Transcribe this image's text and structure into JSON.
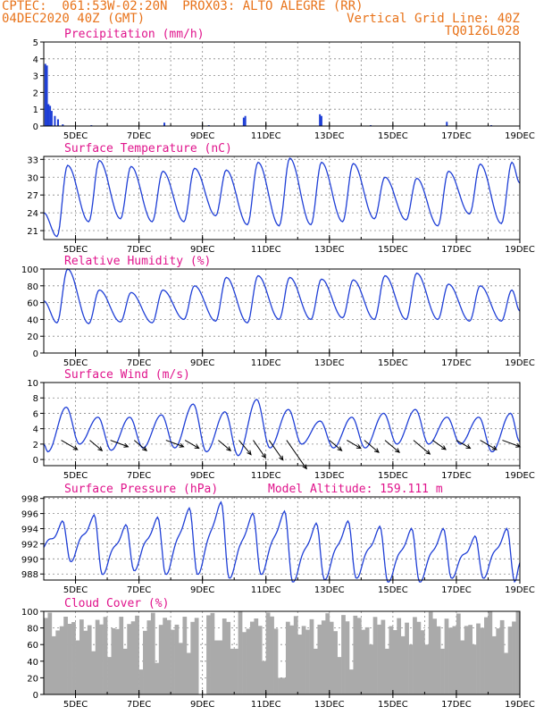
{
  "header": {
    "line1_left": "CPTEC:  061:53W-02:20N  PROX03: ALTO ALEGRE (RR)",
    "line2_left": "04DEC2020 40Z (GMT)",
    "line2_right": "Vertical Grid Line: 40Z",
    "line3_right": "TQ0126L028"
  },
  "colors": {
    "line": "#1f3fd6",
    "cloud": "#aaaaaa",
    "title": "#e0148c",
    "header": "#e8731a"
  },
  "x_ticks": [
    "5DEC",
    "7DEC",
    "9DEC",
    "11DEC",
    "13DEC",
    "15DEC",
    "17DEC",
    "19DEC"
  ],
  "chart_data": [
    {
      "type": "bar",
      "title": "Precipitation (mm/h)",
      "ylim": [
        0,
        5
      ],
      "yticks": [
        0,
        1,
        2,
        3,
        4,
        5
      ],
      "grid": true,
      "x_range": [
        "04DEC2020 00Z",
        "19DEC2020 00Z"
      ],
      "bars": [
        {
          "day": 0.05,
          "value": 3.7
        },
        {
          "day": 0.1,
          "value": 3.6
        },
        {
          "day": 0.15,
          "value": 1.3
        },
        {
          "day": 0.2,
          "value": 1.2
        },
        {
          "day": 0.25,
          "value": 0.9
        },
        {
          "day": 0.35,
          "value": 0.6
        },
        {
          "day": 0.45,
          "value": 0.4
        },
        {
          "day": 0.6,
          "value": 0.1
        },
        {
          "day": 3.8,
          "value": 0.2
        },
        {
          "day": 6.3,
          "value": 0.5
        },
        {
          "day": 6.35,
          "value": 0.6
        },
        {
          "day": 8.7,
          "value": 0.7
        },
        {
          "day": 8.75,
          "value": 0.6
        },
        {
          "day": 12.7,
          "value": 0.25
        },
        {
          "day": 1.5,
          "value": 0.05
        },
        {
          "day": 5.2,
          "value": 0.05
        },
        {
          "day": 10.3,
          "value": 0.05
        },
        {
          "day": 14.1,
          "value": 0.05
        }
      ]
    },
    {
      "type": "line",
      "title": "Surface Temperature (nC)",
      "ylim": [
        19.5,
        33.5
      ],
      "yticks": [
        21,
        24,
        27,
        30,
        33
      ],
      "grid": true,
      "x_range": [
        "04DEC2020 00Z",
        "19DEC2020 00Z"
      ],
      "series_type": "diurnal",
      "daily": [
        {
          "min": 20.0,
          "max": 32.0
        },
        {
          "min": 22.5,
          "max": 32.8
        },
        {
          "min": 23.0,
          "max": 31.8
        },
        {
          "min": 22.5,
          "max": 31.0
        },
        {
          "min": 22.5,
          "max": 31.5
        },
        {
          "min": 23.5,
          "max": 31.2
        },
        {
          "min": 22.0,
          "max": 32.5
        },
        {
          "min": 21.8,
          "max": 33.2
        },
        {
          "min": 22.0,
          "max": 32.5
        },
        {
          "min": 22.5,
          "max": 32.3
        },
        {
          "min": 23.0,
          "max": 30.0
        },
        {
          "min": 22.8,
          "max": 29.8
        },
        {
          "min": 21.8,
          "max": 31.0
        },
        {
          "min": 23.8,
          "max": 32.2
        },
        {
          "min": 22.2,
          "max": 32.5
        }
      ],
      "start": 24.0,
      "end": 29.0
    },
    {
      "type": "line",
      "title": "Relative Humidity (%)",
      "ylim": [
        0,
        100
      ],
      "yticks": [
        0,
        20,
        40,
        60,
        80,
        100
      ],
      "grid": true,
      "x_range": [
        "04DEC2020 00Z",
        "19DEC2020 00Z"
      ],
      "series_type": "diurnal",
      "daily": [
        {
          "min": 36,
          "max": 100
        },
        {
          "min": 35,
          "max": 75
        },
        {
          "min": 37,
          "max": 72
        },
        {
          "min": 36,
          "max": 75
        },
        {
          "min": 40,
          "max": 80
        },
        {
          "min": 38,
          "max": 90
        },
        {
          "min": 36,
          "max": 92
        },
        {
          "min": 40,
          "max": 90
        },
        {
          "min": 40,
          "max": 88
        },
        {
          "min": 42,
          "max": 87
        },
        {
          "min": 40,
          "max": 92
        },
        {
          "min": 40,
          "max": 95
        },
        {
          "min": 40,
          "max": 82
        },
        {
          "min": 38,
          "max": 80
        },
        {
          "min": 38,
          "max": 75
        }
      ],
      "start": 62,
      "end": 50
    },
    {
      "type": "line",
      "title": "Surface Wind (m/s)",
      "ylim": [
        -0.8,
        10
      ],
      "yticks": [
        0,
        2,
        4,
        6,
        8,
        10
      ],
      "grid": true,
      "x_range": [
        "04DEC2020 00Z",
        "19DEC2020 00Z"
      ],
      "series_type": "diurnal_wind",
      "daily": [
        {
          "min": 1.0,
          "max": 6.8
        },
        {
          "min": 2.0,
          "max": 5.5
        },
        {
          "min": 1.2,
          "max": 5.5
        },
        {
          "min": 1.5,
          "max": 5.8
        },
        {
          "min": 1.5,
          "max": 7.2
        },
        {
          "min": 1.0,
          "max": 6.2
        },
        {
          "min": 0.5,
          "max": 7.8
        },
        {
          "min": 1.5,
          "max": 6.5
        },
        {
          "min": 2.0,
          "max": 5.0
        },
        {
          "min": 1.5,
          "max": 5.5
        },
        {
          "min": 1.5,
          "max": 6.0
        },
        {
          "min": 2.0,
          "max": 6.5
        },
        {
          "min": 2.0,
          "max": 5.5
        },
        {
          "min": 2.0,
          "max": 5.5
        },
        {
          "min": 1.0,
          "max": 6.0
        }
      ],
      "start": 2.0,
      "end": 2.3,
      "barbs": [
        {
          "day": 0.55,
          "speed": 3.5,
          "dir": 240
        },
        {
          "day": 1.45,
          "speed": 3.0,
          "dir": 230
        },
        {
          "day": 2.1,
          "speed": 3.5,
          "dir": 250
        },
        {
          "day": 2.85,
          "speed": 3.0,
          "dir": 230
        },
        {
          "day": 3.85,
          "speed": 3.5,
          "dir": 250
        },
        {
          "day": 4.45,
          "speed": 3.0,
          "dir": 240
        },
        {
          "day": 5.5,
          "speed": 3.0,
          "dir": 230
        },
        {
          "day": 6.15,
          "speed": 3.5,
          "dir": 220
        },
        {
          "day": 6.6,
          "speed": 4.0,
          "dir": 215
        },
        {
          "day": 7.1,
          "speed": 4.5,
          "dir": 215
        },
        {
          "day": 7.65,
          "speed": 6.5,
          "dir": 215
        },
        {
          "day": 9.0,
          "speed": 3.0,
          "dir": 230
        },
        {
          "day": 9.55,
          "speed": 3.0,
          "dir": 240
        },
        {
          "day": 10.1,
          "speed": 3.5,
          "dir": 230
        },
        {
          "day": 10.75,
          "speed": 3.5,
          "dir": 230
        },
        {
          "day": 11.65,
          "speed": 4.0,
          "dir": 230
        },
        {
          "day": 12.25,
          "speed": 3.0,
          "dir": 235
        },
        {
          "day": 13.0,
          "speed": 3.0,
          "dir": 240
        },
        {
          "day": 13.75,
          "speed": 3.5,
          "dir": 240
        },
        {
          "day": 14.45,
          "speed": 3.5,
          "dir": 250
        }
      ]
    },
    {
      "type": "line",
      "title": "Surface Pressure (hPa)",
      "subtitle": "Model Altitude: 159.111 m",
      "ylim": [
        987.2,
        998.2
      ],
      "yticks": [
        988,
        990,
        992,
        994,
        996,
        998
      ],
      "grid": true,
      "x_range": [
        "04DEC2020 00Z",
        "19DEC2020 00Z"
      ],
      "series_type": "semidiurnal",
      "daily": [
        {
          "min": 990.2,
          "max": 994.5
        },
        {
          "min": 988.5,
          "max": 995.3
        },
        {
          "min": 989.0,
          "max": 994.0
        },
        {
          "min": 988.5,
          "max": 995.0
        },
        {
          "min": 988.5,
          "max": 996.2
        },
        {
          "min": 988.0,
          "max": 997.0
        },
        {
          "min": 988.5,
          "max": 995.5
        },
        {
          "min": 987.5,
          "max": 995.8
        },
        {
          "min": 987.8,
          "max": 994.2
        },
        {
          "min": 988.0,
          "max": 994.5
        },
        {
          "min": 987.5,
          "max": 993.8
        },
        {
          "min": 987.5,
          "max": 993.5
        },
        {
          "min": 988.0,
          "max": 993.5
        },
        {
          "min": 988.0,
          "max": 992.5
        },
        {
          "min": 987.5,
          "max": 993.5
        }
      ],
      "start": 991.5,
      "end": 989.5
    },
    {
      "type": "bar",
      "title": "Cloud Cover (%)",
      "ylim": [
        0,
        100
      ],
      "yticks": [
        0,
        20,
        40,
        60,
        80,
        100
      ],
      "grid": true,
      "x_range": [
        "04DEC2020 00Z",
        "19DEC2020 00Z"
      ],
      "series_type": "cloud",
      "base_level": 88,
      "dips": [
        {
          "day": 0.3,
          "value": 70
        },
        {
          "day": 0.55,
          "value": 82
        },
        {
          "day": 1.1,
          "value": 65
        },
        {
          "day": 1.6,
          "value": 52
        },
        {
          "day": 2.1,
          "value": 45
        },
        {
          "day": 2.6,
          "value": 55
        },
        {
          "day": 3.1,
          "value": 30
        },
        {
          "day": 3.6,
          "value": 38
        },
        {
          "day": 4.3,
          "value": 62
        },
        {
          "day": 4.6,
          "value": 50
        },
        {
          "day": 5.0,
          "value": 0
        },
        {
          "day": 5.5,
          "value": 65
        },
        {
          "day": 6.0,
          "value": 55
        },
        {
          "day": 6.3,
          "value": 75
        },
        {
          "day": 6.9,
          "value": 40
        },
        {
          "day": 7.5,
          "value": 20
        },
        {
          "day": 8.1,
          "value": 72
        },
        {
          "day": 8.6,
          "value": 55
        },
        {
          "day": 9.3,
          "value": 45
        },
        {
          "day": 9.7,
          "value": 30
        },
        {
          "day": 10.3,
          "value": 60
        },
        {
          "day": 10.8,
          "value": 55
        },
        {
          "day": 11.3,
          "value": 70
        },
        {
          "day": 11.6,
          "value": 60
        },
        {
          "day": 12.1,
          "value": 60
        },
        {
          "day": 12.6,
          "value": 55
        },
        {
          "day": 13.2,
          "value": 65
        },
        {
          "day": 13.6,
          "value": 60
        },
        {
          "day": 14.2,
          "value": 70
        },
        {
          "day": 14.6,
          "value": 50
        }
      ]
    }
  ]
}
